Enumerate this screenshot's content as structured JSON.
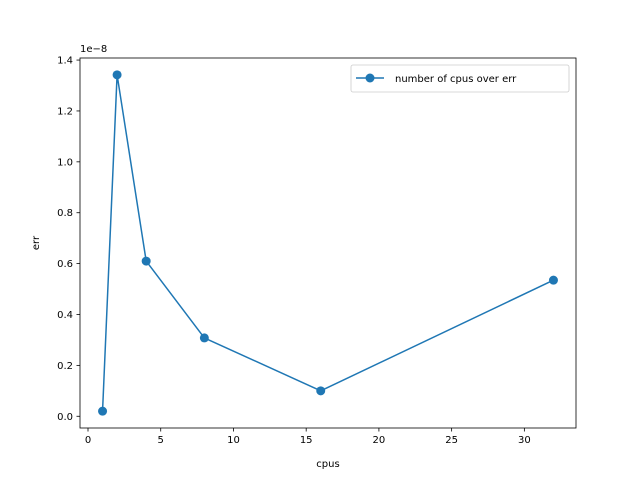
{
  "chart_data": {
    "type": "line",
    "x": [
      1,
      2,
      4,
      8,
      16,
      32
    ],
    "series": [
      {
        "name": "number of cpus over err",
        "values": [
          2e-10,
          1.342e-08,
          6.1e-09,
          3.08e-09,
          1e-09,
          5.35e-09
        ],
        "color": "#1f77b4",
        "marker": "circle"
      }
    ],
    "xlabel": "cpus",
    "ylabel": "err",
    "y_offset_label": "1e−8",
    "xlim": [
      -0.55,
      33.55
    ],
    "ylim": [
      -4.61e-10,
      1.4081e-08
    ],
    "xticks": [
      0,
      5,
      10,
      15,
      20,
      25,
      30
    ],
    "xtick_labels": [
      "0",
      "5",
      "10",
      "15",
      "20",
      "25",
      "30"
    ],
    "yticks": [
      0,
      2e-09,
      4e-09,
      6e-09,
      8e-09,
      1e-08,
      1.2e-08,
      1.4e-08
    ],
    "ytick_labels": [
      "0.0",
      "0.2",
      "0.4",
      "0.6",
      "0.8",
      "1.0",
      "1.2",
      "1.4"
    ],
    "grid": false,
    "legend_position": "top-right"
  }
}
